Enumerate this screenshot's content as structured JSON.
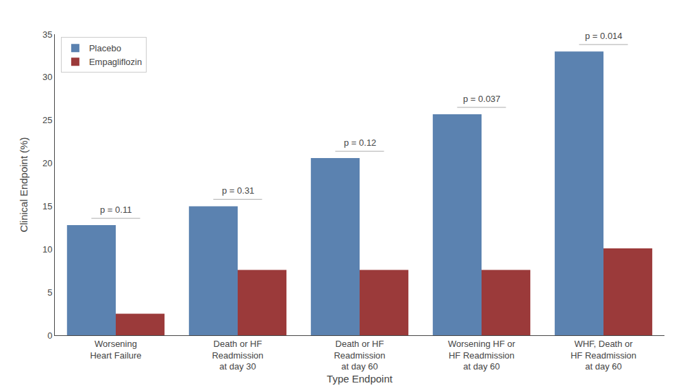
{
  "chart_data": {
    "type": "bar",
    "categories": [
      "Worsening\nHeart Failure",
      "Death or HF\nReadmission\nat day 30",
      "Death or HF\nReadmission\nat day 60",
      "Worsening HF or\nHF Readmission\nat day 60",
      "WHF, Death or\nHF Readmission\nat day 60"
    ],
    "series": [
      {
        "name": "Placebo",
        "color": "#5B82B0",
        "values": [
          12.8,
          15.0,
          20.6,
          25.7,
          33.0
        ]
      },
      {
        "name": "Empagliflozin",
        "color": "#9B3A3A",
        "values": [
          2.5,
          7.6,
          7.6,
          7.6,
          10.1
        ]
      }
    ],
    "annotations": [
      "p = 0.11",
      "p = 0.31",
      "p = 0.12",
      "p = 0.037",
      "p = 0.014"
    ],
    "xlabel": "Type Endpoint",
    "ylabel": "Clinical Endpoint (%)",
    "ylim": [
      0,
      35
    ],
    "yticks": [
      0,
      5,
      10,
      15,
      20,
      25,
      30,
      35
    ],
    "grid": false,
    "legend": "upper left"
  }
}
